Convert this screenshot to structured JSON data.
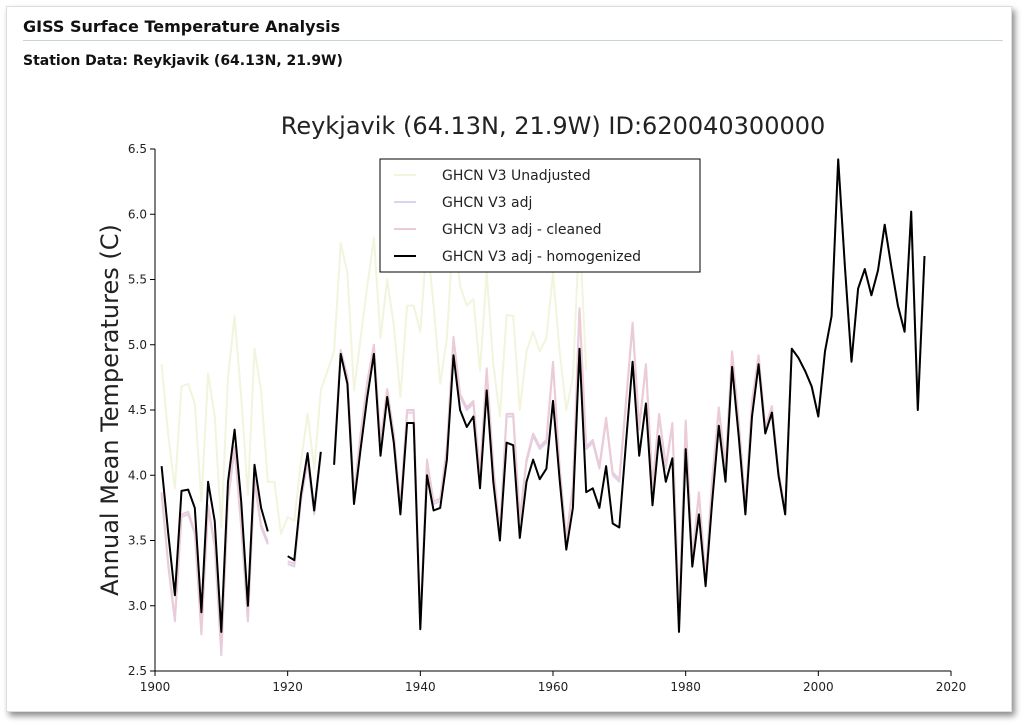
{
  "header": {
    "title": "GISS Surface Temperature Analysis",
    "subtitle": "Station Data: Reykjavik (64.13N, 21.9W)"
  },
  "chart_data": {
    "type": "line",
    "title": "Reykjavik (64.13N, 21.9W) ID:620040300000",
    "y_label": "Annual Mean Temperatures (C)",
    "x": [
      1901,
      1902,
      1903,
      1904,
      1905,
      1906,
      1907,
      1908,
      1909,
      1910,
      1911,
      1912,
      1913,
      1914,
      1915,
      1916,
      1917,
      1918,
      1919,
      1920,
      1921,
      1922,
      1923,
      1924,
      1925,
      1926,
      1927,
      1928,
      1929,
      1930,
      1931,
      1932,
      1933,
      1934,
      1935,
      1936,
      1937,
      1938,
      1939,
      1940,
      1941,
      1942,
      1943,
      1944,
      1945,
      1946,
      1947,
      1948,
      1949,
      1950,
      1951,
      1952,
      1953,
      1954,
      1955,
      1956,
      1957,
      1958,
      1959,
      1960,
      1961,
      1962,
      1963,
      1964,
      1965,
      1966,
      1967,
      1968,
      1969,
      1970,
      1971,
      1972,
      1973,
      1974,
      1975,
      1976,
      1977,
      1978,
      1979,
      1980,
      1981,
      1982,
      1983,
      1984,
      1985,
      1986,
      1987,
      1988,
      1989,
      1990,
      1991,
      1992,
      1993,
      1994,
      1995,
      1996,
      1997,
      1998,
      1999,
      2000,
      2001,
      2002,
      2003,
      2004,
      2005,
      2006,
      2007,
      2008,
      2009,
      2010,
      2011,
      2012,
      2013,
      2014,
      2015,
      2016
    ],
    "xlim": [
      1900,
      2020
    ],
    "xticks": [
      1900,
      1920,
      1940,
      1960,
      1980,
      2000,
      2020
    ],
    "ylim": [
      2.5,
      6.5
    ],
    "yticks": [
      2.5,
      {
        "value": 3,
        "label": "3.0"
      },
      3.5,
      {
        "value": 4,
        "label": "4.0"
      },
      4.5,
      {
        "value": 5,
        "label": "5.0"
      },
      5.5,
      {
        "value": 6,
        "label": "6.0"
      },
      6.5
    ],
    "legend": "upper center",
    "series": [
      {
        "name": "GHCN V3 Unadjusted",
        "color": "#f2f4dc",
        "values": [
          4.85,
          4.3,
          3.9,
          4.68,
          4.7,
          4.55,
          3.8,
          4.78,
          4.45,
          3.6,
          4.75,
          5.22,
          4.6,
          3.85,
          4.97,
          4.65,
          3.95,
          3.95,
          3.55,
          3.68,
          3.65,
          4.1,
          4.47,
          4.05,
          4.65,
          4.8,
          4.95,
          5.78,
          5.55,
          4.65,
          5.05,
          5.45,
          5.82,
          5.05,
          5.5,
          5.15,
          4.6,
          5.3,
          5.3,
          5.1,
          5.8,
          5.3,
          4.7,
          5.05,
          5.9,
          5.45,
          5.3,
          5.35,
          4.8,
          5.55,
          4.85,
          4.45,
          5.23,
          5.22,
          4.5,
          4.95,
          5.1,
          4.95,
          5.05,
          5.55,
          4.95,
          4.5,
          4.75,
          5.9,
          4.8,
          null,
          null,
          null,
          null,
          null,
          null,
          null,
          null,
          null,
          null,
          null,
          null,
          null,
          null,
          null,
          null,
          null,
          null,
          null,
          null,
          null,
          null,
          null,
          null,
          null,
          null,
          null,
          null,
          null,
          null,
          null,
          null,
          null,
          null,
          null,
          null,
          null,
          null,
          null,
          null,
          null,
          null,
          null,
          null,
          null,
          null,
          null,
          null,
          null,
          null,
          null
        ]
      },
      {
        "name": "GHCN V3 adj",
        "color": "#dcd2ee",
        "values": [
          3.85,
          3.3,
          2.88,
          3.68,
          3.7,
          3.55,
          2.78,
          3.75,
          3.45,
          2.62,
          3.8,
          4.2,
          3.6,
          2.88,
          3.95,
          3.6,
          3.47,
          null,
          null,
          3.32,
          3.3,
          3.8,
          4.1,
          3.7,
          4.15,
          null,
          4.1,
          4.95,
          4.75,
          3.85,
          4.3,
          4.7,
          5.0,
          4.25,
          4.65,
          4.3,
          3.75,
          4.48,
          4.48,
          2.85,
          4.1,
          3.78,
          3.8,
          4.2,
          5.05,
          4.6,
          4.5,
          4.55,
          4.0,
          4.8,
          4.05,
          3.55,
          4.45,
          4.45,
          3.65,
          4.1,
          4.3,
          4.2,
          4.25,
          4.85,
          4.05,
          3.5,
          3.9,
          5.28,
          4.2,
          4.25,
          4.05,
          4.42,
          4.0,
          3.95,
          4.55,
          5.15,
          4.35,
          4.85,
          3.9,
          4.45,
          4.05,
          4.38,
          2.9,
          4.4,
          3.35,
          3.85,
          3.2,
          3.95,
          4.5,
          4.05,
          4.93,
          4.4,
          3.75,
          4.55,
          4.9,
          4.35,
          4.52,
          4.02,
          3.72,
          4.97,
          4.9,
          4.8,
          4.68,
          4.45,
          4.95,
          5.22,
          6.42,
          5.6,
          4.87,
          5.43,
          5.58,
          5.38,
          5.57,
          5.92,
          5.6,
          5.3,
          5.1,
          6.02,
          4.5,
          5.68
        ]
      },
      {
        "name": "GHCN V3 adj - cleaned",
        "color": "#eccad6",
        "values": [
          3.87,
          3.32,
          2.9,
          3.7,
          3.72,
          3.57,
          2.8,
          3.77,
          3.47,
          2.65,
          3.82,
          4.22,
          3.62,
          2.9,
          3.97,
          3.62,
          3.49,
          null,
          null,
          3.34,
          3.32,
          3.82,
          4.12,
          3.72,
          4.17,
          null,
          4.12,
          4.96,
          4.76,
          3.86,
          4.32,
          4.72,
          5.0,
          4.27,
          4.66,
          4.32,
          3.77,
          4.5,
          4.5,
          2.86,
          4.12,
          3.8,
          3.82,
          4.22,
          5.06,
          4.62,
          4.52,
          4.57,
          4.02,
          4.82,
          4.07,
          3.57,
          4.47,
          4.47,
          3.67,
          4.12,
          4.32,
          4.22,
          4.27,
          4.87,
          4.07,
          3.52,
          3.92,
          5.28,
          4.22,
          4.27,
          4.07,
          4.44,
          4.02,
          3.97,
          4.57,
          5.17,
          4.37,
          4.85,
          3.92,
          4.47,
          4.07,
          4.4,
          2.92,
          4.42,
          3.37,
          3.87,
          3.22,
          3.97,
          4.52,
          4.07,
          4.95,
          4.42,
          3.77,
          4.57,
          4.92,
          4.37,
          4.53,
          4.03,
          3.73,
          4.97,
          4.9,
          4.8,
          4.68,
          4.45,
          4.95,
          5.22,
          6.42,
          5.6,
          4.87,
          5.43,
          5.58,
          5.38,
          5.57,
          5.92,
          5.6,
          5.3,
          5.1,
          6.02,
          4.5,
          5.68
        ]
      },
      {
        "name": "GHCN V3 adj - homogenized",
        "color": "#000000",
        "values": [
          4.07,
          3.55,
          3.08,
          3.88,
          3.89,
          3.75,
          2.95,
          3.95,
          3.65,
          2.8,
          3.95,
          4.35,
          3.8,
          3.0,
          4.08,
          3.75,
          3.57,
          null,
          null,
          3.38,
          3.35,
          3.85,
          4.17,
          3.73,
          4.18,
          null,
          4.08,
          4.93,
          4.7,
          3.78,
          4.2,
          4.6,
          4.93,
          4.15,
          4.6,
          4.25,
          3.7,
          4.4,
          4.4,
          2.82,
          4.0,
          3.73,
          3.75,
          4.12,
          4.92,
          4.5,
          4.37,
          4.45,
          3.9,
          4.65,
          3.95,
          3.5,
          4.25,
          4.23,
          3.52,
          3.95,
          4.12,
          3.97,
          4.05,
          4.57,
          3.97,
          3.43,
          3.75,
          4.97,
          3.87,
          3.9,
          3.75,
          4.07,
          3.63,
          3.6,
          4.25,
          4.87,
          4.15,
          4.55,
          3.77,
          4.3,
          3.95,
          4.13,
          2.8,
          4.2,
          3.3,
          3.7,
          3.15,
          3.8,
          4.38,
          3.95,
          4.83,
          4.3,
          3.7,
          4.45,
          4.85,
          4.32,
          4.48,
          4.0,
          3.7,
          4.97,
          4.9,
          4.8,
          4.68,
          4.45,
          4.95,
          5.22,
          6.42,
          5.6,
          4.87,
          5.43,
          5.58,
          5.38,
          5.57,
          5.92,
          5.6,
          5.3,
          5.1,
          6.02,
          4.5,
          5.68
        ]
      }
    ]
  }
}
